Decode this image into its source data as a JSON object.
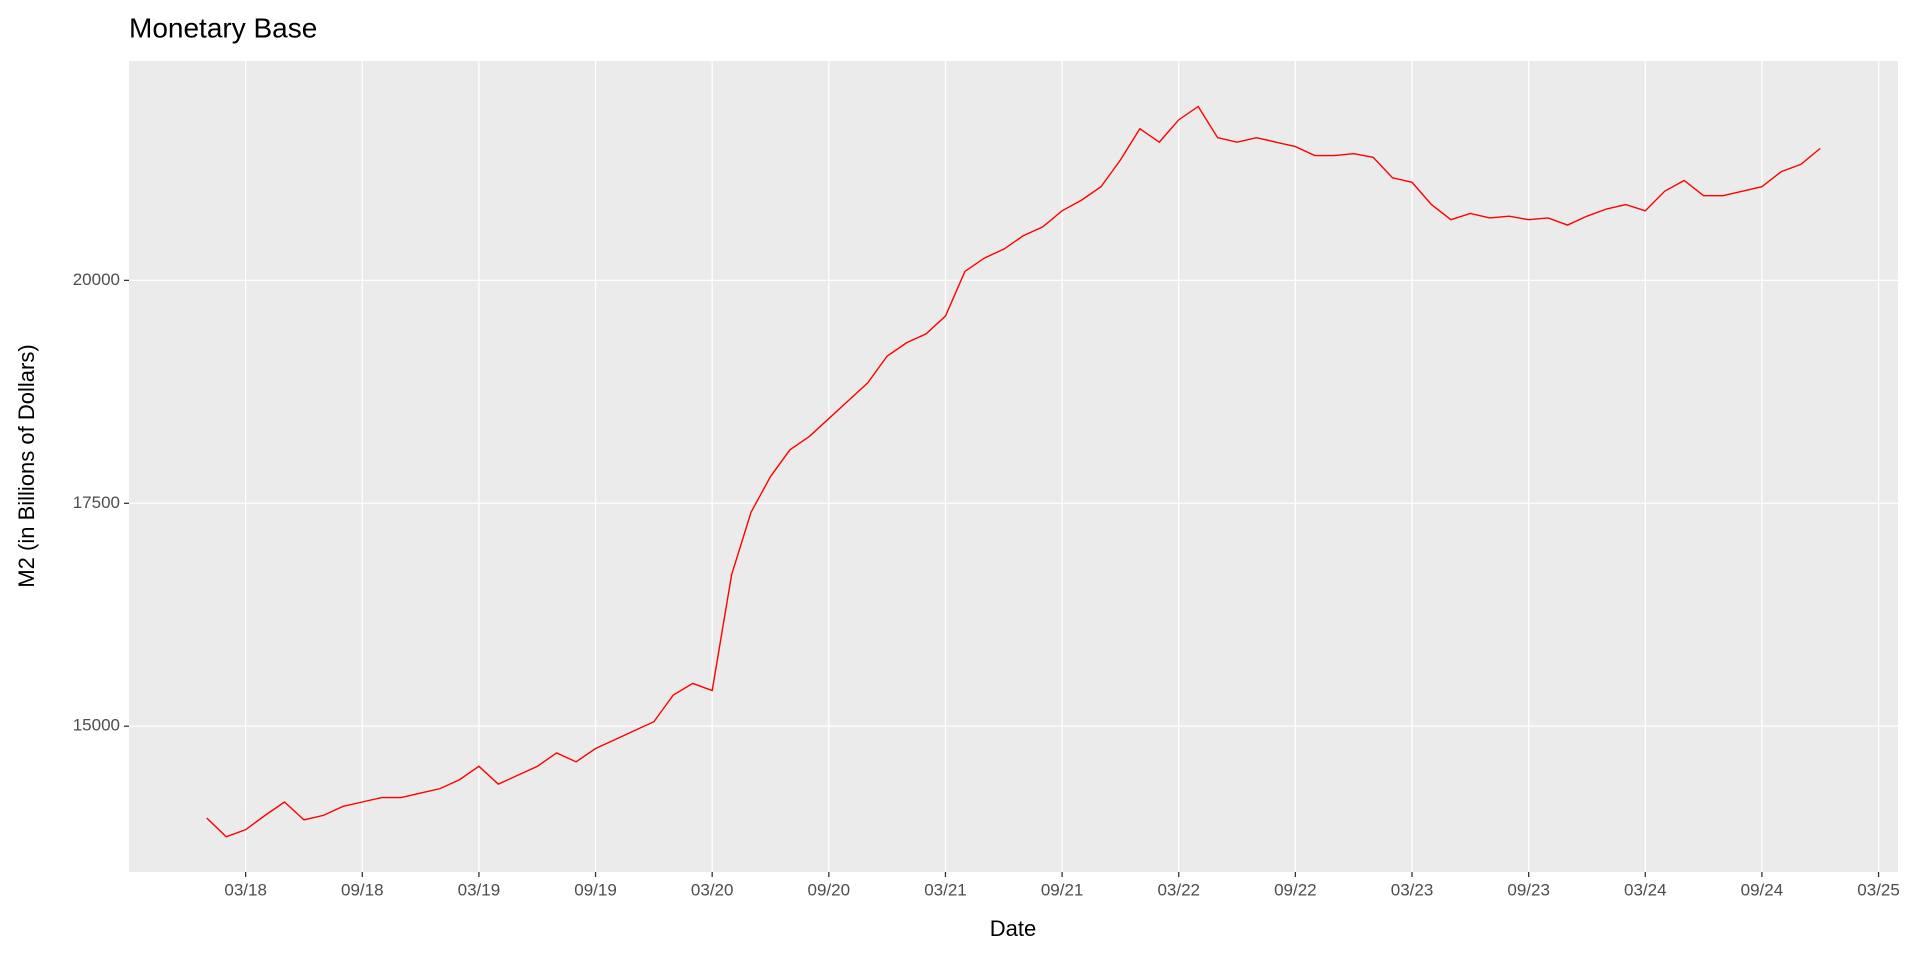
{
  "chart_data": {
    "type": "line",
    "title": "Monetary Base",
    "x_label": "Date",
    "y_label": "M2 (in Billions of Dollars)",
    "x": [
      "2018-01",
      "2018-02",
      "2018-03",
      "2018-04",
      "2018-05",
      "2018-06",
      "2018-07",
      "2018-08",
      "2018-09",
      "2018-10",
      "2018-11",
      "2018-12",
      "2019-01",
      "2019-02",
      "2019-03",
      "2019-04",
      "2019-05",
      "2019-06",
      "2019-07",
      "2019-08",
      "2019-09",
      "2019-10",
      "2019-11",
      "2019-12",
      "2020-01",
      "2020-02",
      "2020-03",
      "2020-04",
      "2020-05",
      "2020-06",
      "2020-07",
      "2020-08",
      "2020-09",
      "2020-10",
      "2020-11",
      "2020-12",
      "2021-01",
      "2021-02",
      "2021-03",
      "2021-04",
      "2021-05",
      "2021-06",
      "2021-07",
      "2021-08",
      "2021-09",
      "2021-10",
      "2021-11",
      "2021-12",
      "2022-01",
      "2022-02",
      "2022-03",
      "2022-04",
      "2022-05",
      "2022-06",
      "2022-07",
      "2022-08",
      "2022-09",
      "2022-10",
      "2022-11",
      "2022-12",
      "2023-01",
      "2023-02",
      "2023-03",
      "2023-04",
      "2023-05",
      "2023-06",
      "2023-07",
      "2023-08",
      "2023-09",
      "2023-10",
      "2023-11",
      "2023-12",
      "2024-01",
      "2024-02",
      "2024-03",
      "2024-04",
      "2024-05",
      "2024-06",
      "2024-07",
      "2024-08",
      "2024-09",
      "2024-10",
      "2024-11",
      "2024-12"
    ],
    "series": [
      {
        "name": "M2",
        "color": "#ff0000",
        "values": [
          13970,
          13760,
          13840,
          14000,
          14150,
          13950,
          14000,
          14100,
          14150,
          14200,
          14200,
          14250,
          14300,
          14400,
          14550,
          14350,
          14450,
          14550,
          14700,
          14600,
          14750,
          14850,
          14950,
          15050,
          15350,
          15480,
          15400,
          16700,
          17400,
          17800,
          18100,
          18250,
          18450,
          18650,
          18850,
          19150,
          19300,
          19400,
          19600,
          20100,
          20250,
          20350,
          20500,
          20600,
          20780,
          20900,
          21050,
          21350,
          21700,
          21550,
          21800,
          21950,
          21600,
          21550,
          21600,
          21550,
          21500,
          21400,
          21400,
          21420,
          21380,
          21150,
          21100,
          20850,
          20680,
          20750,
          20700,
          20720,
          20680,
          20700,
          20620,
          20720,
          20800,
          20850,
          20780,
          21000,
          21120,
          20950,
          20950,
          21000,
          21050,
          21220,
          21300,
          21480
        ]
      }
    ],
    "xlim": [
      "2017-09",
      "2025-04"
    ],
    "xticks": [
      {
        "value": "2018-03",
        "label": "03/18"
      },
      {
        "value": "2018-09",
        "label": "09/18"
      },
      {
        "value": "2019-03",
        "label": "03/19"
      },
      {
        "value": "2019-09",
        "label": "09/19"
      },
      {
        "value": "2020-03",
        "label": "03/20"
      },
      {
        "value": "2020-09",
        "label": "09/20"
      },
      {
        "value": "2021-03",
        "label": "03/21"
      },
      {
        "value": "2021-09",
        "label": "09/21"
      },
      {
        "value": "2022-03",
        "label": "03/22"
      },
      {
        "value": "2022-09",
        "label": "09/22"
      },
      {
        "value": "2023-03",
        "label": "03/23"
      },
      {
        "value": "2023-09",
        "label": "09/23"
      },
      {
        "value": "2024-03",
        "label": "03/24"
      },
      {
        "value": "2024-09",
        "label": "09/24"
      },
      {
        "value": "2025-03",
        "label": "03/25"
      }
    ],
    "ylim": [
      13365,
      22460
    ],
    "yticks": [
      15000,
      17500,
      20000
    ],
    "grid": true
  }
}
